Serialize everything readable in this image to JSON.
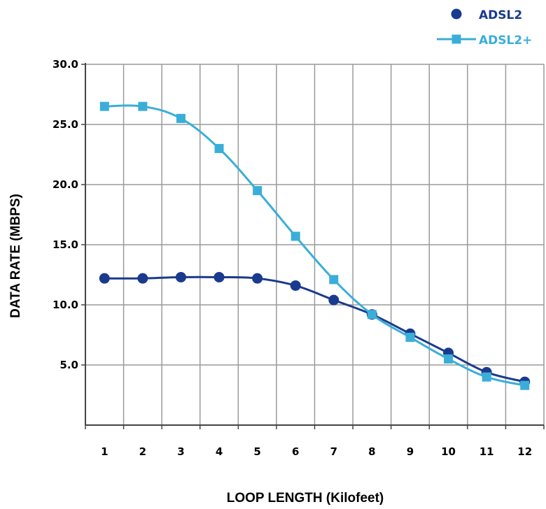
{
  "chart_data": {
    "type": "line",
    "xlabel": "LOOP LENGTH (Kilofeet)",
    "ylabel": "DATA RATE (MBPS)",
    "categories": [
      "1",
      "2",
      "3",
      "4",
      "5",
      "6",
      "7",
      "8",
      "9",
      "10",
      "11",
      "12"
    ],
    "yticks": [
      "5.0",
      "10.0",
      "15.0",
      "20.0",
      "25.0",
      "30.0"
    ],
    "ylim": [
      0,
      30
    ],
    "grid": true,
    "legend_position": "top-right",
    "series": [
      {
        "name": "ADSL2",
        "color": "#1a3a8e",
        "marker": "circle",
        "values": [
          12.2,
          12.2,
          12.3,
          12.3,
          12.2,
          11.6,
          10.4,
          9.2,
          7.6,
          6.0,
          4.4,
          3.6
        ]
      },
      {
        "name": "ADSL2+",
        "color": "#3aaed8",
        "marker": "square",
        "values": [
          26.5,
          26.5,
          25.5,
          23.0,
          19.5,
          15.7,
          12.1,
          9.2,
          7.3,
          5.5,
          4.0,
          3.3
        ]
      }
    ]
  }
}
